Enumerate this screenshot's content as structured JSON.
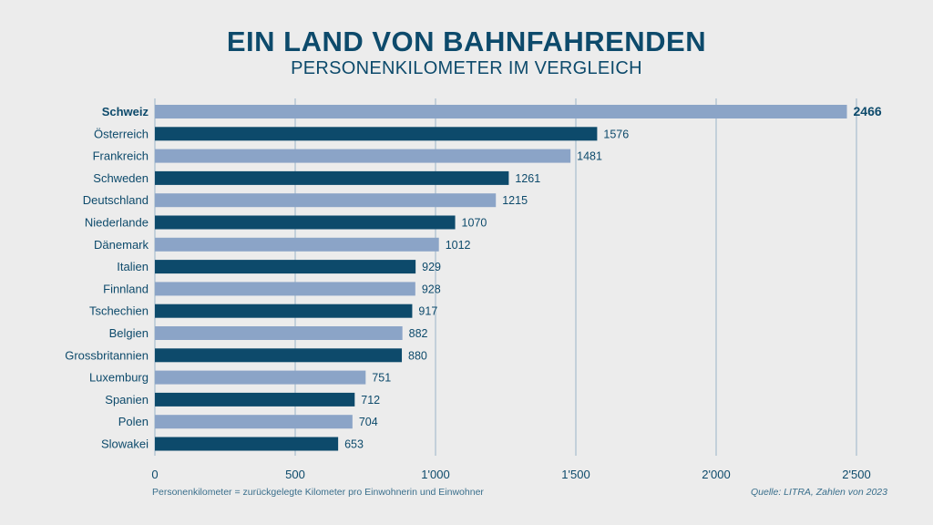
{
  "chart_data": {
    "type": "bar",
    "orientation": "horizontal",
    "title": "EIN LAND VON BAHNFAHRENDEN",
    "subtitle": "PERSONENKILOMETER IM VERGLEICH",
    "categories": [
      "Schweiz",
      "Österreich",
      "Frankreich",
      "Schweden",
      "Deutschland",
      "Niederlande",
      "Dänemark",
      "Italien",
      "Finnland",
      "Tschechien",
      "Belgien",
      "Grossbritannien",
      "Luxemburg",
      "Spanien",
      "Polen",
      "Slowakei"
    ],
    "values": [
      2466,
      1576,
      1481,
      1261,
      1215,
      1070,
      1012,
      929,
      928,
      917,
      882,
      880,
      751,
      712,
      704,
      653
    ],
    "highlight_category": "Schweiz",
    "xlim": [
      0,
      2500
    ],
    "xticks": [
      0,
      500,
      1000,
      1500,
      2000,
      2500
    ],
    "xtick_labels": [
      "0",
      "500",
      "1'000",
      "1'500",
      "2'000",
      "2'500"
    ],
    "grid": true,
    "colors": {
      "light_bar": "#8ba4c7",
      "dark_bar": "#0d4a6b",
      "text": "#0d4a6b",
      "grid": "#9ab5c8"
    },
    "footnote": "Personenkilometer = zurückgelegte Kilometer pro Einwohnerin und Einwohner",
    "source": "Quelle: LITRA, Zahlen von 2023"
  }
}
